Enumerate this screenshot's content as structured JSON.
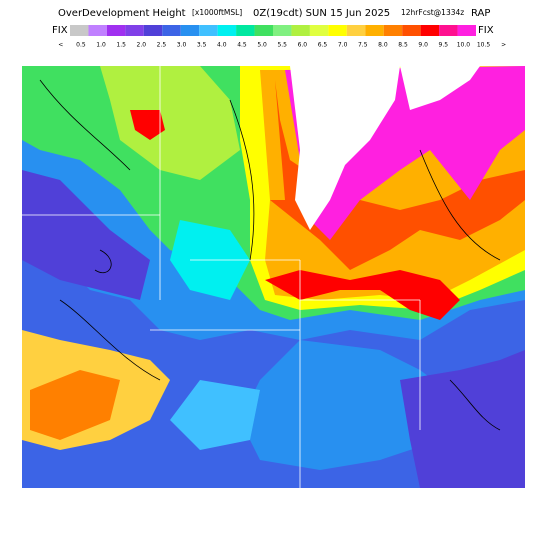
{
  "header": {
    "title": "OverDevelopment Height",
    "units": "[x1000ftMSL]",
    "time": "0Z(19cdt) SUN 15 Jun 2025",
    "forecast": "12hrFcst@1334z",
    "model": "RAP"
  },
  "colorbar": {
    "left_label": "FIX",
    "right_label": "FIX",
    "labels": [
      "<",
      "0.5",
      "1.0",
      "1.5",
      "2.0",
      "2.5",
      "3.0",
      "3.5",
      "4.0",
      "4.5",
      "5.0",
      "5.5",
      "6.0",
      "6.5",
      "7.0",
      "7.5",
      "8.0",
      "8.5",
      "9.0",
      "9.5",
      "10.0",
      "10.5",
      ">"
    ],
    "colors": [
      "#c8c8c8",
      "#c080ff",
      "#a030f0",
      "#8040e8",
      "#5040d8",
      "#3c64e6",
      "#2890f0",
      "#40c0ff",
      "#00f0f0",
      "#00e8a0",
      "#40e060",
      "#80f080",
      "#b0f040",
      "#e0ff40",
      "#ffff00",
      "#ffd040",
      "#ffb000",
      "#ff8000",
      "#ff5000",
      "#ff0000",
      "#ff1090",
      "#ff20e0"
    ]
  }
}
